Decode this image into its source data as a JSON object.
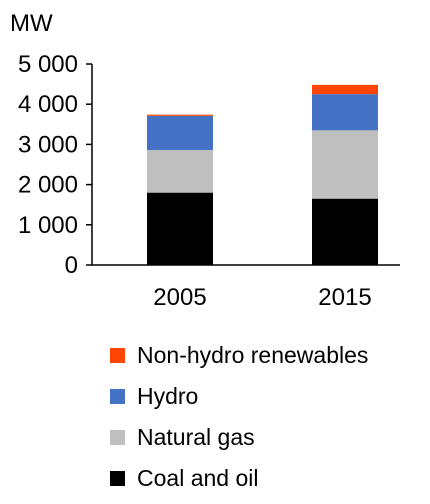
{
  "chart_data": {
    "type": "bar",
    "stacked": true,
    "unit": "MW",
    "categories": [
      "2005",
      "2015"
    ],
    "ylim": [
      0,
      5000
    ],
    "yticks": [
      {
        "value": 0,
        "label": "0"
      },
      {
        "value": 1000,
        "label": "1 000"
      },
      {
        "value": 2000,
        "label": "2 000"
      },
      {
        "value": 3000,
        "label": "3 000"
      },
      {
        "value": 4000,
        "label": "4 000"
      },
      {
        "value": 5000,
        "label": "5 000"
      }
    ],
    "grid": false,
    "legend_position": "bottom",
    "series": [
      {
        "name": "Coal and oil",
        "color": "#000000",
        "values": [
          1800,
          1650
        ]
      },
      {
        "name": "Natural gas",
        "color": "#bfbfbf",
        "values": [
          1060,
          1700
        ]
      },
      {
        "name": "Hydro",
        "color": "#4472c4",
        "values": [
          850,
          900
        ]
      },
      {
        "name": "Non-hydro renewables",
        "color": "#ff4500",
        "values": [
          30,
          230
        ]
      }
    ]
  }
}
